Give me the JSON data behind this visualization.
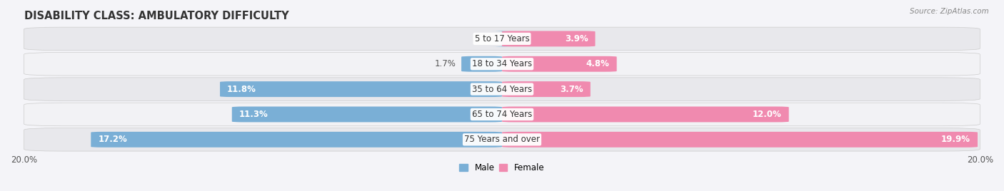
{
  "title": "DISABILITY CLASS: AMBULATORY DIFFICULTY",
  "source": "Source: ZipAtlas.com",
  "categories": [
    "75 Years and over",
    "65 to 74 Years",
    "35 to 64 Years",
    "18 to 34 Years",
    "5 to 17 Years"
  ],
  "male_values": [
    17.2,
    11.3,
    11.8,
    1.7,
    0.0
  ],
  "female_values": [
    19.9,
    12.0,
    3.7,
    4.8,
    3.9
  ],
  "max_val": 20.0,
  "male_color": "#7aafd6",
  "female_color": "#f08aaf",
  "row_bg_even": "#e8e8ec",
  "row_bg_odd": "#f2f2f5",
  "label_dark": "#555555",
  "label_white": "#ffffff",
  "title_fontsize": 10.5,
  "label_fontsize": 8.5,
  "tick_fontsize": 8.5,
  "bar_height": 0.62,
  "figsize": [
    14.06,
    2.68
  ]
}
